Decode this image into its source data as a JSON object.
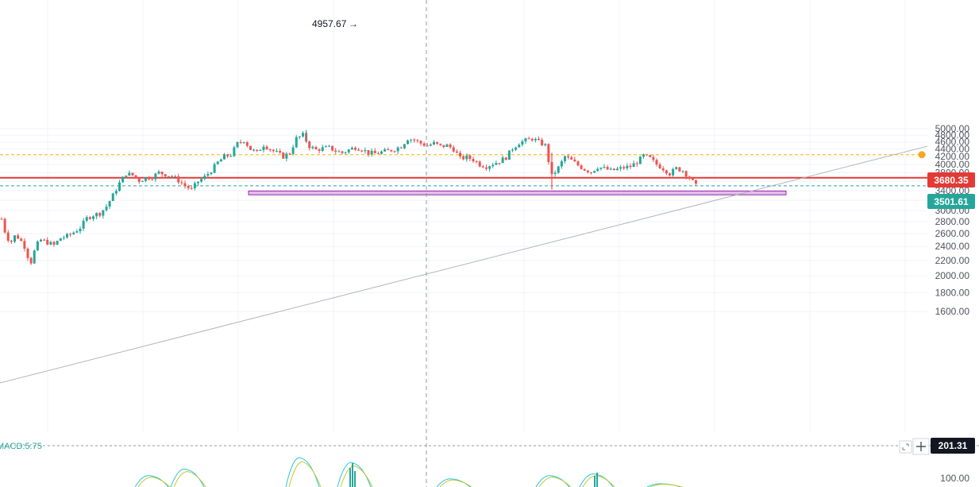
{
  "chart_data": {
    "type": "candlestick",
    "y_axis": {
      "scale": "log",
      "ticks": [
        "5000.00",
        "4800.00",
        "4600.00",
        "4400.00",
        "4200.00",
        "4000.00",
        "3800.00",
        "3600.00",
        "3400.00",
        "3200.00",
        "3000.00",
        "2800.00",
        "2600.00",
        "2400.00",
        "2200.00",
        "2000.00",
        "1800.00",
        "1600.00"
      ],
      "range": [
        1600,
        5000
      ]
    },
    "price_path": [
      [
        0,
        2850
      ],
      [
        0.5,
        2640
      ],
      [
        1,
        2520
      ],
      [
        1.5,
        2480
      ],
      [
        2,
        2560
      ],
      [
        2.5,
        2540
      ],
      [
        3,
        2480
      ],
      [
        3.5,
        2400
      ],
      [
        4,
        2260
      ],
      [
        4.5,
        2180
      ],
      [
        5,
        2330
      ],
      [
        5.5,
        2440
      ],
      [
        6,
        2500
      ],
      [
        7,
        2460
      ],
      [
        8,
        2420
      ],
      [
        9,
        2530
      ],
      [
        10,
        2560
      ],
      [
        11,
        2620
      ],
      [
        12,
        2700
      ],
      [
        13,
        2860
      ],
      [
        14,
        2920
      ],
      [
        15,
        2950
      ],
      [
        16,
        3080
      ],
      [
        17,
        3300
      ],
      [
        18,
        3560
      ],
      [
        19,
        3780
      ],
      [
        20,
        3740
      ],
      [
        21,
        3620
      ],
      [
        22,
        3680
      ],
      [
        23,
        3700
      ],
      [
        24,
        3800
      ],
      [
        25,
        3760
      ],
      [
        26,
        3720
      ],
      [
        27,
        3620
      ],
      [
        28,
        3500
      ],
      [
        29,
        3420
      ],
      [
        30,
        3600
      ],
      [
        31,
        3700
      ],
      [
        32,
        3850
      ],
      [
        33,
        4050
      ],
      [
        34,
        4200
      ],
      [
        35,
        4250
      ],
      [
        36,
        4550
      ],
      [
        37,
        4650
      ],
      [
        38,
        4400
      ],
      [
        39,
        4300
      ],
      [
        40,
        4520
      ],
      [
        41,
        4400
      ],
      [
        42,
        4300
      ],
      [
        43,
        4200
      ],
      [
        44,
        4300
      ],
      [
        45,
        4700
      ],
      [
        46,
        4800
      ],
      [
        47,
        4480
      ],
      [
        48,
        4380
      ],
      [
        49,
        4420
      ],
      [
        50,
        4440
      ],
      [
        51,
        4350
      ],
      [
        52,
        4300
      ],
      [
        53,
        4380
      ],
      [
        54,
        4450
      ],
      [
        55,
        4400
      ],
      [
        56,
        4300
      ],
      [
        57,
        4280
      ],
      [
        58,
        4320
      ],
      [
        59,
        4350
      ],
      [
        60,
        4400
      ],
      [
        61,
        4480
      ],
      [
        62,
        4700
      ],
      [
        63,
        4660
      ],
      [
        64,
        4560
      ],
      [
        65,
        4500
      ],
      [
        66,
        4560
      ],
      [
        67,
        4480
      ],
      [
        68,
        4500
      ],
      [
        69,
        4400
      ],
      [
        70,
        4150
      ],
      [
        71,
        4180
      ],
      [
        72,
        4120
      ],
      [
        73,
        4000
      ],
      [
        74,
        3950
      ],
      [
        75,
        4020
      ],
      [
        76,
        4080
      ],
      [
        77,
        4180
      ],
      [
        78,
        4420
      ],
      [
        79,
        4580
      ],
      [
        80,
        4640
      ],
      [
        81,
        4700
      ],
      [
        82,
        4600
      ],
      [
        83,
        4500
      ],
      [
        84,
        3720
      ],
      [
        85,
        3920
      ],
      [
        86,
        4200
      ],
      [
        87,
        4100
      ],
      [
        88,
        3980
      ],
      [
        89,
        3880
      ],
      [
        90,
        3820
      ],
      [
        91,
        3940
      ],
      [
        92,
        3900
      ],
      [
        93,
        3850
      ],
      [
        94,
        3880
      ],
      [
        95,
        3920
      ],
      [
        96,
        3950
      ],
      [
        97,
        4060
      ],
      [
        98,
        4220
      ],
      [
        99,
        4150
      ],
      [
        100,
        4000
      ],
      [
        101,
        3900
      ],
      [
        102,
        3780
      ],
      [
        103,
        3900
      ],
      [
        104,
        3850
      ],
      [
        105,
        3680
      ],
      [
        106,
        3500
      ]
    ],
    "horizontal_levels": [
      {
        "price": 4250,
        "style": "dashed",
        "color": "#f5b400"
      },
      {
        "price": 3680.35,
        "style": "solid",
        "color": "#e53935"
      },
      {
        "price": 3501.61,
        "style": "dashed",
        "color": "#26a69a"
      }
    ],
    "zone": {
      "top": 3390,
      "bottom": 3310,
      "color": "#e1bee7"
    },
    "annotation": {
      "label": "4957.67",
      "arrow": "→",
      "price": 4957.67
    },
    "badges": [
      {
        "label": "3680.35",
        "color": "#e53935"
      },
      {
        "label": "3501.61",
        "color": "#26a69a"
      }
    ],
    "macd": {
      "label": "MACD:5:75",
      "value_badge": "201.31",
      "value_badge_color": "#131722",
      "axis_tick": "100.00"
    },
    "colors": {
      "up": "#26a69a",
      "down": "#ef5350",
      "grid": "#f0f3fa",
      "crosshair": "#9598a1",
      "trendline": "#b2b5be"
    }
  }
}
